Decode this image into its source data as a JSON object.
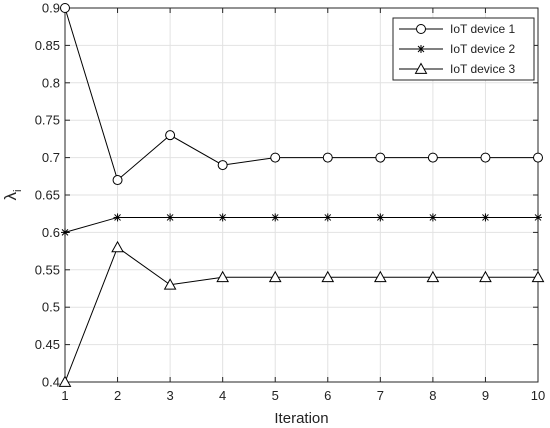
{
  "chart_data": {
    "type": "line",
    "xlabel": "Iteration",
    "ylabel_main": "λ",
    "ylabel_sub": "i",
    "xlim": [
      1,
      10
    ],
    "ylim": [
      0.4,
      0.9
    ],
    "xticks": [
      1,
      2,
      3,
      4,
      5,
      6,
      7,
      8,
      9,
      10
    ],
    "yticks": [
      0.4,
      0.45,
      0.5,
      0.55,
      0.6,
      0.65,
      0.7,
      0.75,
      0.8,
      0.85,
      0.9
    ],
    "ytick_labels": [
      "0.4",
      "0.45",
      "0.5",
      "0.55",
      "0.6",
      "0.65",
      "0.7",
      "0.75",
      "0.8",
      "0.85",
      "0.9"
    ],
    "grid": true,
    "legend_position": "top-right",
    "line_color": "#000000",
    "x": [
      1,
      2,
      3,
      4,
      5,
      6,
      7,
      8,
      9,
      10
    ],
    "series": [
      {
        "name": "IoT device 1",
        "marker": "circle",
        "values": [
          0.9,
          0.67,
          0.73,
          0.69,
          0.7,
          0.7,
          0.7,
          0.7,
          0.7,
          0.7
        ]
      },
      {
        "name": "IoT device 2",
        "marker": "asterisk",
        "values": [
          0.6,
          0.62,
          0.62,
          0.62,
          0.62,
          0.62,
          0.62,
          0.62,
          0.62,
          0.62
        ]
      },
      {
        "name": "IoT device 3",
        "marker": "triangle",
        "values": [
          0.4,
          0.58,
          0.53,
          0.54,
          0.54,
          0.54,
          0.54,
          0.54,
          0.54,
          0.54
        ]
      }
    ]
  }
}
